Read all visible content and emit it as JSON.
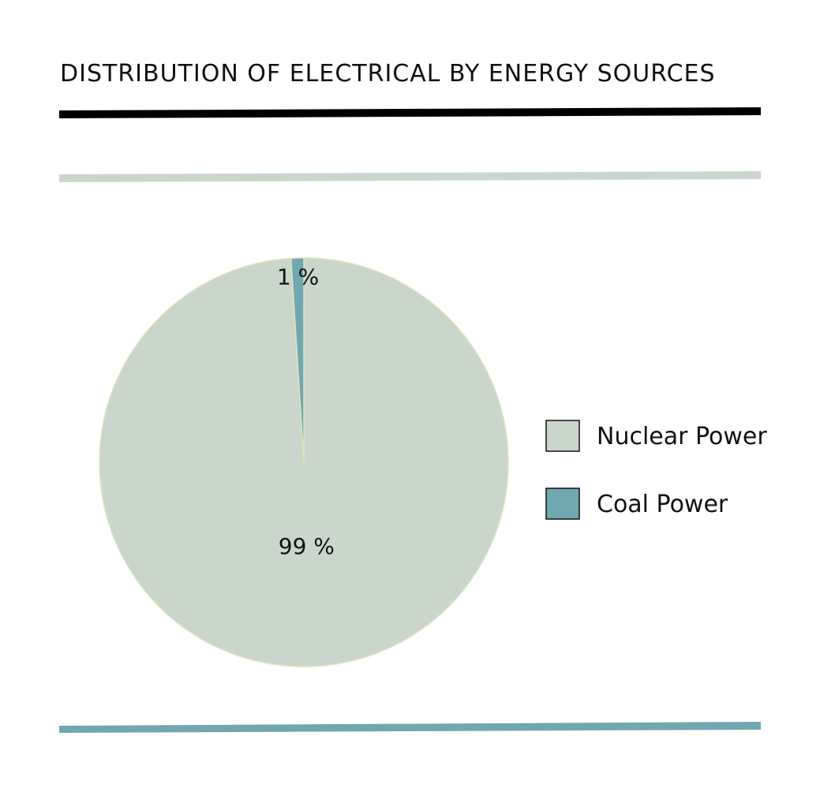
{
  "chart_data": {
    "type": "pie",
    "title": "DISTRIBUTION OF ELECTRICAL BY ENERGY SOURCES",
    "categories": [
      "Nuclear Power",
      "Coal Power"
    ],
    "values": [
      99,
      1
    ],
    "value_labels": [
      "99 %",
      "1 %"
    ],
    "colors": [
      "#cad6cc",
      "#70a7b1"
    ],
    "legend": "right"
  },
  "decor": {
    "rule_colors": [
      "#000000",
      "#cad6cc",
      "#70a7b1"
    ]
  }
}
